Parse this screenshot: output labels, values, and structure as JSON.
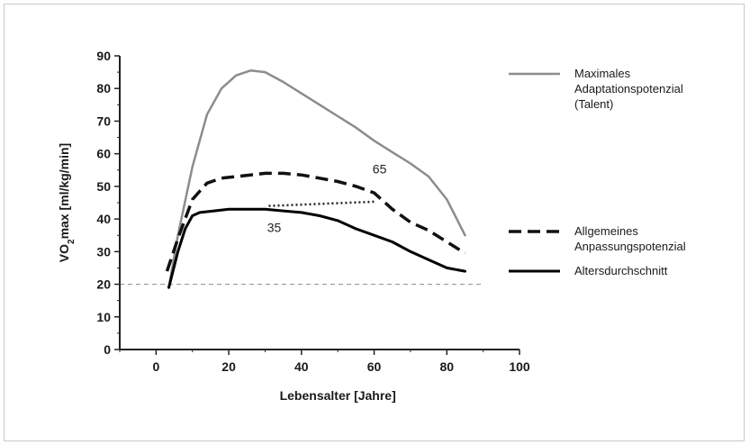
{
  "chart_data": {
    "type": "line",
    "title": "",
    "xlabel": "Lebensalter [Jahre]",
    "ylabel": "VO2max [ml/kg/min]",
    "xlim": [
      -10,
      100
    ],
    "ylim": [
      0,
      90
    ],
    "xticks": [
      0,
      20,
      40,
      60,
      80,
      100
    ],
    "yticks": [
      0,
      10,
      20,
      30,
      40,
      50,
      60,
      70,
      80,
      90
    ],
    "grid": false,
    "legend_position": "right",
    "series": [
      {
        "name": "Maximales Adaptationspotenzial (Talent)",
        "legend_lines": [
          "Maximales",
          "Adaptationspotenzial",
          "(Talent)"
        ],
        "color": "#8c8c8c",
        "style": "solid",
        "points": [
          [
            3.5,
            19
          ],
          [
            6,
            35
          ],
          [
            10,
            56
          ],
          [
            14,
            72
          ],
          [
            18,
            80
          ],
          [
            22,
            84
          ],
          [
            26,
            85.5
          ],
          [
            30,
            85
          ],
          [
            35,
            82
          ],
          [
            40,
            78.5
          ],
          [
            45,
            75
          ],
          [
            50,
            71.5
          ],
          [
            55,
            68
          ],
          [
            60,
            64
          ],
          [
            65,
            60.5
          ],
          [
            70,
            57
          ],
          [
            75,
            53
          ],
          [
            80,
            46
          ],
          [
            85,
            35
          ]
        ]
      },
      {
        "name": "Allgemeines Anpassungspotenzial",
        "legend_lines": [
          "Allgemeines",
          "Anpassungspotenzial"
        ],
        "color": "#111111",
        "style": "dashed",
        "points": [
          [
            3,
            24
          ],
          [
            6,
            34
          ],
          [
            10,
            46
          ],
          [
            14,
            51
          ],
          [
            18,
            52.5
          ],
          [
            22,
            53
          ],
          [
            26,
            53.5
          ],
          [
            30,
            54
          ],
          [
            35,
            54
          ],
          [
            40,
            53.5
          ],
          [
            45,
            52.5
          ],
          [
            50,
            51.5
          ],
          [
            55,
            50
          ],
          [
            60,
            48
          ],
          [
            65,
            43
          ],
          [
            70,
            39
          ],
          [
            75,
            36.5
          ],
          [
            80,
            33
          ],
          [
            85,
            29.5
          ]
        ]
      },
      {
        "name": "Altersdurchschnitt",
        "legend_lines": [
          "Altersdurchschnitt"
        ],
        "color": "#000000",
        "style": "solid",
        "points": [
          [
            3.5,
            19
          ],
          [
            6,
            30
          ],
          [
            8,
            37
          ],
          [
            10,
            41
          ],
          [
            12,
            42
          ],
          [
            16,
            42.5
          ],
          [
            20,
            43
          ],
          [
            25,
            43
          ],
          [
            30,
            43
          ],
          [
            35,
            42.5
          ],
          [
            40,
            42
          ],
          [
            45,
            41
          ],
          [
            50,
            39.5
          ],
          [
            55,
            37
          ],
          [
            60,
            35
          ],
          [
            65,
            33
          ],
          [
            70,
            30
          ],
          [
            75,
            27.5
          ],
          [
            80,
            25
          ],
          [
            85,
            24
          ]
        ]
      }
    ],
    "reference_lines": [
      {
        "type": "horizontal",
        "y": 20,
        "x_range": [
          -10,
          85
        ],
        "color": "#999999",
        "style": "dashed"
      }
    ],
    "dotted_line": {
      "from": [
        31,
        44
      ],
      "to": [
        60,
        45.3
      ],
      "color": "#222222"
    },
    "annotations": [
      {
        "text": "65",
        "x": 61.5,
        "y": 54
      },
      {
        "text": "35",
        "x": 32.5,
        "y": 36
      }
    ]
  }
}
